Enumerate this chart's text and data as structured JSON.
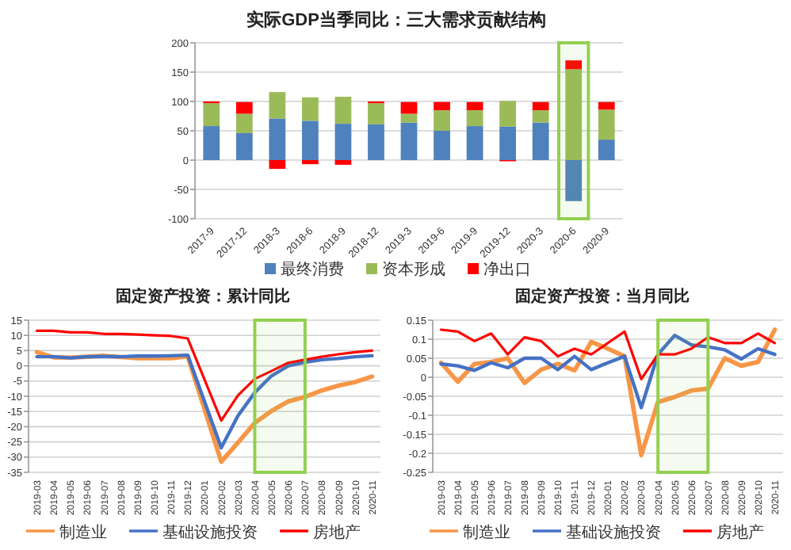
{
  "chart_data": [
    {
      "type": "bar",
      "title": "实际GDP当季同比：三大需求贡献结构",
      "stacked": true,
      "categories": [
        "2017-9",
        "2017-12",
        "2018-3",
        "2018-6",
        "2018-9",
        "2018-12",
        "2019-3",
        "2019-6",
        "2019-9",
        "2019-12",
        "2020-3",
        "2020-6",
        "2020-9"
      ],
      "series": [
        {
          "name": "最终消费",
          "color": "#4f81bd",
          "values": [
            58,
            46,
            71,
            67,
            62,
            61,
            64,
            50,
            58,
            57,
            64,
            -70,
            35
          ]
        },
        {
          "name": "资本形成",
          "color": "#9bbb59",
          "values": [
            39,
            33,
            45,
            40,
            46,
            36,
            15,
            35,
            27,
            44,
            21,
            155,
            51
          ]
        },
        {
          "name": "净出口",
          "color": "#ff0000",
          "values": [
            3,
            20,
            -15,
            -7,
            -8,
            3,
            20,
            14,
            14,
            -2,
            14,
            15,
            13
          ]
        }
      ],
      "ylim": [
        -100,
        200
      ],
      "yticks": [
        -100,
        -50,
        0,
        50,
        100,
        150,
        200
      ],
      "grid": "y",
      "legend": "bottom",
      "bands": [
        {
          "axis": "x",
          "from": "2020-6",
          "to": "2020-6",
          "color": "#92d050"
        }
      ]
    },
    {
      "type": "line",
      "title": "固定资产投资：累计同比",
      "categories": [
        "2019-03",
        "2019-04",
        "2019-05",
        "2019-06",
        "2019-07",
        "2019-08",
        "2019-09",
        "2019-10",
        "2019-11",
        "2019-12",
        "2020-01",
        "2020-02",
        "2020-03",
        "2020-04",
        "2020-05",
        "2020-06",
        "2020-07",
        "2020-08",
        "2020-09",
        "2020-10",
        "2020-11"
      ],
      "series": [
        {
          "name": "制造业",
          "color": "#f79646",
          "values": [
            4.5,
            2.8,
            2.7,
            3,
            3.3,
            2.9,
            2.5,
            2.6,
            2.5,
            3.1,
            null,
            -31.5,
            -25.2,
            -18.8,
            -14.8,
            -11.7,
            -10.2,
            -8.1,
            -6.5,
            -5.3,
            -3.5
          ]
        },
        {
          "name": "基础设施投资",
          "color": "#4472c4",
          "values": [
            3,
            3,
            2.6,
            3,
            3.1,
            3,
            3.2,
            3.2,
            3.3,
            3.5,
            null,
            -26.9,
            -16.4,
            -8.8,
            -3.3,
            0,
            1.2,
            2,
            2.4,
            3,
            3.3
          ]
        },
        {
          "name": "房地产",
          "color": "#ff0000",
          "values": [
            11.5,
            11.5,
            11,
            11,
            10.5,
            10.5,
            10.3,
            10,
            9.8,
            9,
            null,
            -18,
            -9.7,
            -4.3,
            -1.7,
            1,
            2,
            3,
            3.8,
            4.5,
            5
          ]
        }
      ],
      "ylim": [
        -35,
        15
      ],
      "yticks": [
        -35,
        -30,
        -25,
        -20,
        -15,
        -10,
        -5,
        0,
        5,
        10,
        15
      ],
      "grid": "y",
      "legend": "bottom",
      "bands": [
        {
          "axis": "x",
          "from": "2020-04",
          "to": "2020-07",
          "color": "#92d050"
        }
      ]
    },
    {
      "type": "line",
      "title": "固定资产投资：当月同比",
      "categories": [
        "2019-03",
        "2019-04",
        "2019-05",
        "2019-06",
        "2019-07",
        "2019-08",
        "2019-09",
        "2019-10",
        "2019-11",
        "2019-12",
        "2020-01",
        "2020-02",
        "2020-03",
        "2020-04",
        "2020-05",
        "2020-06",
        "2020-07",
        "2020-08",
        "2020-09",
        "2020-10",
        "2020-11"
      ],
      "series": [
        {
          "name": "制造业",
          "color": "#f79646",
          "values": [
            0.038,
            -0.012,
            0.035,
            0.04,
            0.05,
            -0.015,
            0.02,
            0.035,
            0.018,
            0.093,
            0.075,
            0.055,
            -0.205,
            -0.065,
            -0.052,
            -0.035,
            -0.03,
            0.05,
            0.03,
            0.04,
            0.125
          ]
        },
        {
          "name": "基础设施投资",
          "color": "#4472c4",
          "values": [
            0.035,
            0.03,
            0.018,
            0.038,
            0.025,
            0.05,
            0.05,
            0.02,
            0.055,
            0.02,
            0.038,
            0.055,
            -0.08,
            0.06,
            0.11,
            0.085,
            0.08,
            0.072,
            0.048,
            0.075,
            0.06
          ]
        },
        {
          "name": "房地产",
          "color": "#ff0000",
          "values": [
            0.125,
            0.12,
            0.095,
            0.115,
            0.06,
            0.105,
            0.095,
            0.055,
            0.075,
            0.06,
            0.09,
            0.12,
            -0.005,
            0.06,
            0.06,
            0.075,
            0.105,
            0.09,
            0.09,
            0.115,
            0.09
          ]
        }
      ],
      "ylim": [
        -0.25,
        0.15
      ],
      "yticks": [
        -0.25,
        -0.2,
        -0.15,
        -0.1,
        -0.05,
        0,
        0.05,
        0.1,
        0.15
      ],
      "grid": "y",
      "legend": "bottom",
      "bands": [
        {
          "axis": "x",
          "from": "2020-04",
          "to": "2020-07",
          "color": "#92d050"
        }
      ]
    }
  ]
}
